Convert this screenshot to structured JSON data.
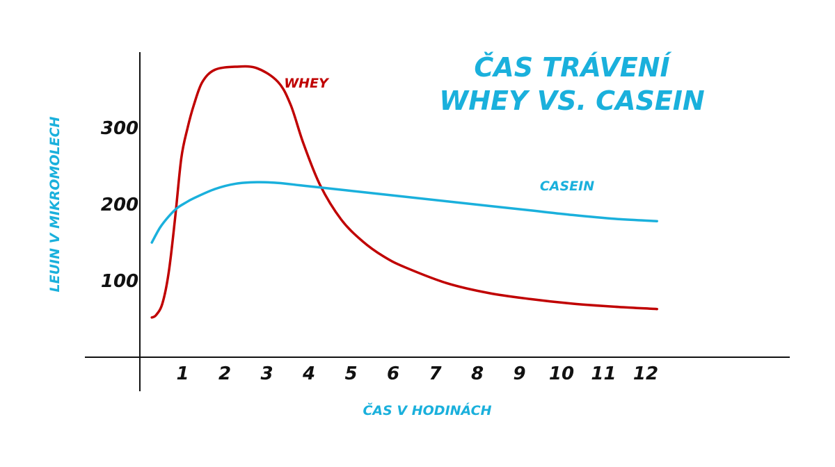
{
  "chart_data": {
    "type": "line",
    "title_lines": [
      "ČAS TRÁVENÍ",
      "WHEY VS. CASEIN"
    ],
    "xlabel": "ČAS V HODINÁCH",
    "ylabel": "LEUIN V MIKROMOLECH",
    "x_ticks": [
      "1",
      "2",
      "3",
      "4",
      "5",
      "6",
      "7",
      "8",
      "9",
      "10",
      "11",
      "12"
    ],
    "y_ticks": [
      "100",
      "200",
      "300"
    ],
    "grid": false,
    "series": [
      {
        "name": "WHEY",
        "color": "#c00000",
        "x": [
          0,
          0.1,
          0.25,
          0.4,
          0.55,
          0.7,
          0.85,
          1.0,
          1.2,
          1.5,
          2.0,
          2.5,
          3.0,
          3.3,
          3.6,
          4.0,
          4.5,
          5.0,
          5.5,
          6.0,
          7.0,
          8.0,
          9.0,
          10.0,
          11.0,
          12.0
        ],
        "y": [
          52,
          55,
          70,
          110,
          180,
          260,
          300,
          330,
          360,
          376,
          380,
          378,
          360,
          330,
          280,
          225,
          180,
          152,
          132,
          118,
          97,
          84,
          76,
          70,
          66,
          63
        ]
      },
      {
        "name": "CASEIN",
        "color": "#1ab0dc",
        "x": [
          0,
          0.2,
          0.4,
          0.6,
          0.8,
          1.0,
          1.5,
          2.0,
          2.5,
          3.0,
          3.5,
          4.0,
          5.0,
          6.0,
          7.0,
          8.0,
          9.0,
          10.0,
          11.0,
          12.0
        ],
        "y": [
          150,
          170,
          184,
          195,
          202,
          208,
          220,
          227,
          229,
          228,
          225,
          222,
          216,
          210,
          204,
          198,
          192,
          186,
          181,
          178
        ]
      }
    ]
  }
}
